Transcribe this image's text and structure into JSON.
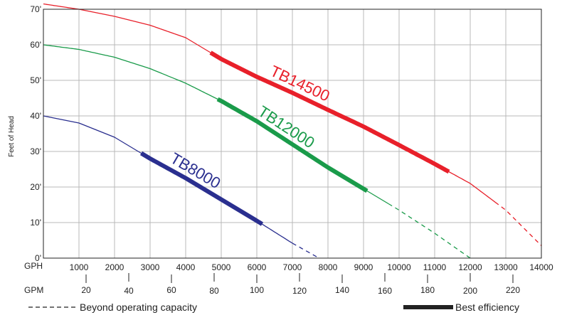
{
  "chart_data": {
    "type": "line",
    "ylabel": "Feet of Head",
    "ylim": [
      0,
      70
    ],
    "xlim": [
      0,
      14000
    ],
    "y_ticks": [
      "0'",
      "10'",
      "20'",
      "30'",
      "40'",
      "50'",
      "60'",
      "70'"
    ],
    "x_axis_gph": {
      "unit": "GPH",
      "ticks": [
        "1000",
        "2000",
        "3000",
        "4000",
        "5000",
        "6000",
        "7000",
        "8000",
        "9000",
        "10000",
        "11000",
        "12000",
        "13000",
        "14000"
      ]
    },
    "x_axis_gpm": {
      "unit": "GPM",
      "ticks": [
        "20",
        "40",
        "60",
        "80",
        "100",
        "120",
        "140",
        "160",
        "180",
        "200",
        "220"
      ]
    },
    "grid": true,
    "series": [
      {
        "name": "TB8000",
        "color": "#2a2f8f",
        "points": [
          [
            0,
            40
          ],
          [
            1000,
            38
          ],
          [
            2000,
            34
          ],
          [
            3000,
            28
          ],
          [
            4000,
            22.5
          ],
          [
            5000,
            16.5
          ],
          [
            6000,
            10.5
          ],
          [
            7000,
            4.2
          ],
          [
            7750,
            0
          ]
        ],
        "best_efficiency": [
          2750,
          6150
        ],
        "beyond_capacity_from": 7000
      },
      {
        "name": "TB12000",
        "color": "#1a9b4a",
        "points": [
          [
            0,
            60
          ],
          [
            1000,
            58.7
          ],
          [
            2000,
            56.5
          ],
          [
            3000,
            53.3
          ],
          [
            4000,
            49.2
          ],
          [
            5000,
            44.2
          ],
          [
            6000,
            38.5
          ],
          [
            7000,
            32
          ],
          [
            8000,
            25.5
          ],
          [
            9000,
            19.5
          ],
          [
            10000,
            13.5
          ],
          [
            11000,
            7
          ],
          [
            12000,
            0
          ]
        ],
        "best_efficiency": [
          4900,
          9100
        ],
        "beyond_capacity_from": 9700
      },
      {
        "name": "TB14500",
        "color": "#e8202a",
        "points": [
          [
            0,
            71.5
          ],
          [
            1000,
            70
          ],
          [
            2000,
            68
          ],
          [
            3000,
            65.5
          ],
          [
            4000,
            62
          ],
          [
            5000,
            56
          ],
          [
            6000,
            51
          ],
          [
            7000,
            46.5
          ],
          [
            8000,
            41.7
          ],
          [
            9000,
            37
          ],
          [
            10000,
            31.8
          ],
          [
            11000,
            26.5
          ],
          [
            12000,
            21
          ],
          [
            13000,
            13.5
          ],
          [
            14000,
            3.5
          ]
        ],
        "best_efficiency": [
          4700,
          11400
        ],
        "beyond_capacity_from": 12700
      }
    ],
    "legend": {
      "dashed": "Beyond operating capacity",
      "solid": "Best efficiency"
    }
  }
}
